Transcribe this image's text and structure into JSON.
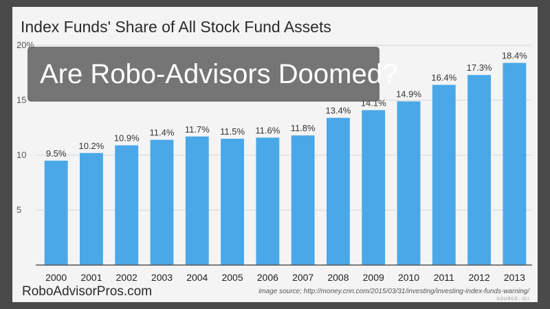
{
  "banner": {
    "text": "Are Robo-Advisors Doomed?"
  },
  "footer": {
    "site": "RoboAdvisorPros.com",
    "image_source": "image source; http://money.cnn.com/2015/03/31/investing/investing-index-funds-warning/",
    "credit": "SOURCE: ICI"
  },
  "colors": {
    "bar": "#4aa8e8",
    "axis": "#555555",
    "grid": "#d6d6d6"
  },
  "chart_data": {
    "type": "bar",
    "title": "Index Funds' Share of All Stock Fund Assets",
    "xlabel": "",
    "ylabel": "",
    "ylim": [
      0,
      20
    ],
    "yticks": [
      5,
      10,
      15,
      20
    ],
    "ytick_labels": [
      "5",
      "10",
      "15",
      "20%"
    ],
    "grid": true,
    "categories": [
      "2000",
      "2001",
      "2002",
      "2003",
      "2004",
      "2005",
      "2006",
      "2007",
      "2008",
      "2009",
      "2010",
      "2011",
      "2012",
      "2013"
    ],
    "values": [
      9.5,
      10.2,
      10.9,
      11.4,
      11.7,
      11.5,
      11.6,
      11.8,
      13.4,
      14.1,
      14.9,
      16.4,
      17.3,
      18.4
    ],
    "value_labels": [
      "9.5%",
      "10.2%",
      "10.9%",
      "11.4%",
      "11.7%",
      "11.5%",
      "11.6%",
      "11.8%",
      "13.4%",
      "14.1%",
      "14.9%",
      "16.4%",
      "17.3%",
      "18.4%"
    ]
  }
}
